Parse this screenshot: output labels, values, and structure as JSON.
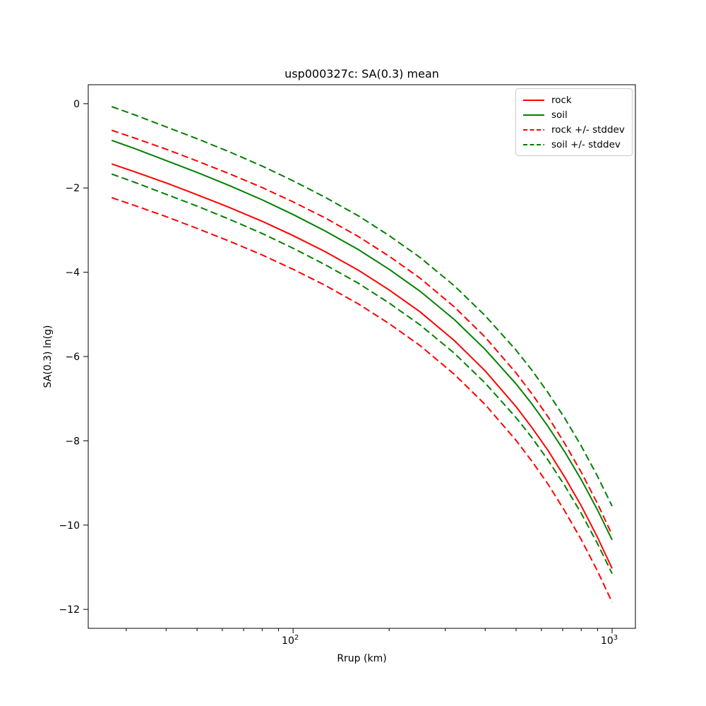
{
  "chart_data": {
    "type": "line",
    "title": "usp000327c: SA(0.3) mean",
    "xlabel": "Rrup (km)",
    "ylabel": "SA(0.3) ln(g)",
    "xscale": "log",
    "yscale": "linear",
    "xlim": [
      22.8,
      1183
    ],
    "ylim": [
      -12.45,
      0.45
    ],
    "grid": false,
    "x": [
      27,
      32,
      40,
      50,
      63,
      80,
      100,
      126,
      160,
      200,
      250,
      320,
      400,
      500,
      560,
      630,
      710,
      800,
      900,
      1000
    ],
    "series": [
      {
        "name": "rock",
        "label": "rock",
        "color": "#ff0000",
        "style": "solid",
        "values": [
          -1.43,
          -1.62,
          -1.88,
          -2.16,
          -2.46,
          -2.79,
          -3.13,
          -3.51,
          -3.95,
          -4.42,
          -4.94,
          -5.62,
          -6.34,
          -7.19,
          -7.68,
          -8.23,
          -8.86,
          -9.54,
          -10.29,
          -11.03
        ]
      },
      {
        "name": "soil",
        "label": "soil",
        "color": "#008000",
        "style": "solid",
        "values": [
          -0.87,
          -1.07,
          -1.35,
          -1.63,
          -1.94,
          -2.28,
          -2.63,
          -3.02,
          -3.46,
          -3.93,
          -4.45,
          -5.12,
          -5.83,
          -6.65,
          -7.12,
          -7.66,
          -8.26,
          -8.92,
          -9.64,
          -10.35
        ]
      },
      {
        "name": "rock_stddev_band",
        "label": "rock +/- stddev",
        "color": "#ff0000",
        "style": "dashed",
        "band_of": "rock",
        "stddev": 0.8
      },
      {
        "name": "soil_stddev_band",
        "label": "soil +/- stddev",
        "color": "#008000",
        "style": "dashed",
        "band_of": "soil",
        "stddev": 0.8
      }
    ],
    "yticks": {
      "values": [
        0,
        -2,
        -4,
        -6,
        -8,
        -10,
        -12
      ],
      "labels": [
        "0",
        "−2",
        "−4",
        "−6",
        "−8",
        "−10",
        "−12"
      ]
    },
    "xticks_major": [
      {
        "value": 100,
        "base": "10",
        "exp": "2"
      },
      {
        "value": 1000,
        "base": "10",
        "exp": "3"
      }
    ],
    "xticks_minor": [
      30,
      40,
      50,
      60,
      70,
      80,
      90,
      200,
      300,
      400,
      500,
      600,
      700,
      800,
      900
    ],
    "legend": {
      "position": "upper right",
      "entries": [
        "rock",
        "soil",
        "rock +/- stddev",
        "soil +/- stddev"
      ]
    }
  }
}
